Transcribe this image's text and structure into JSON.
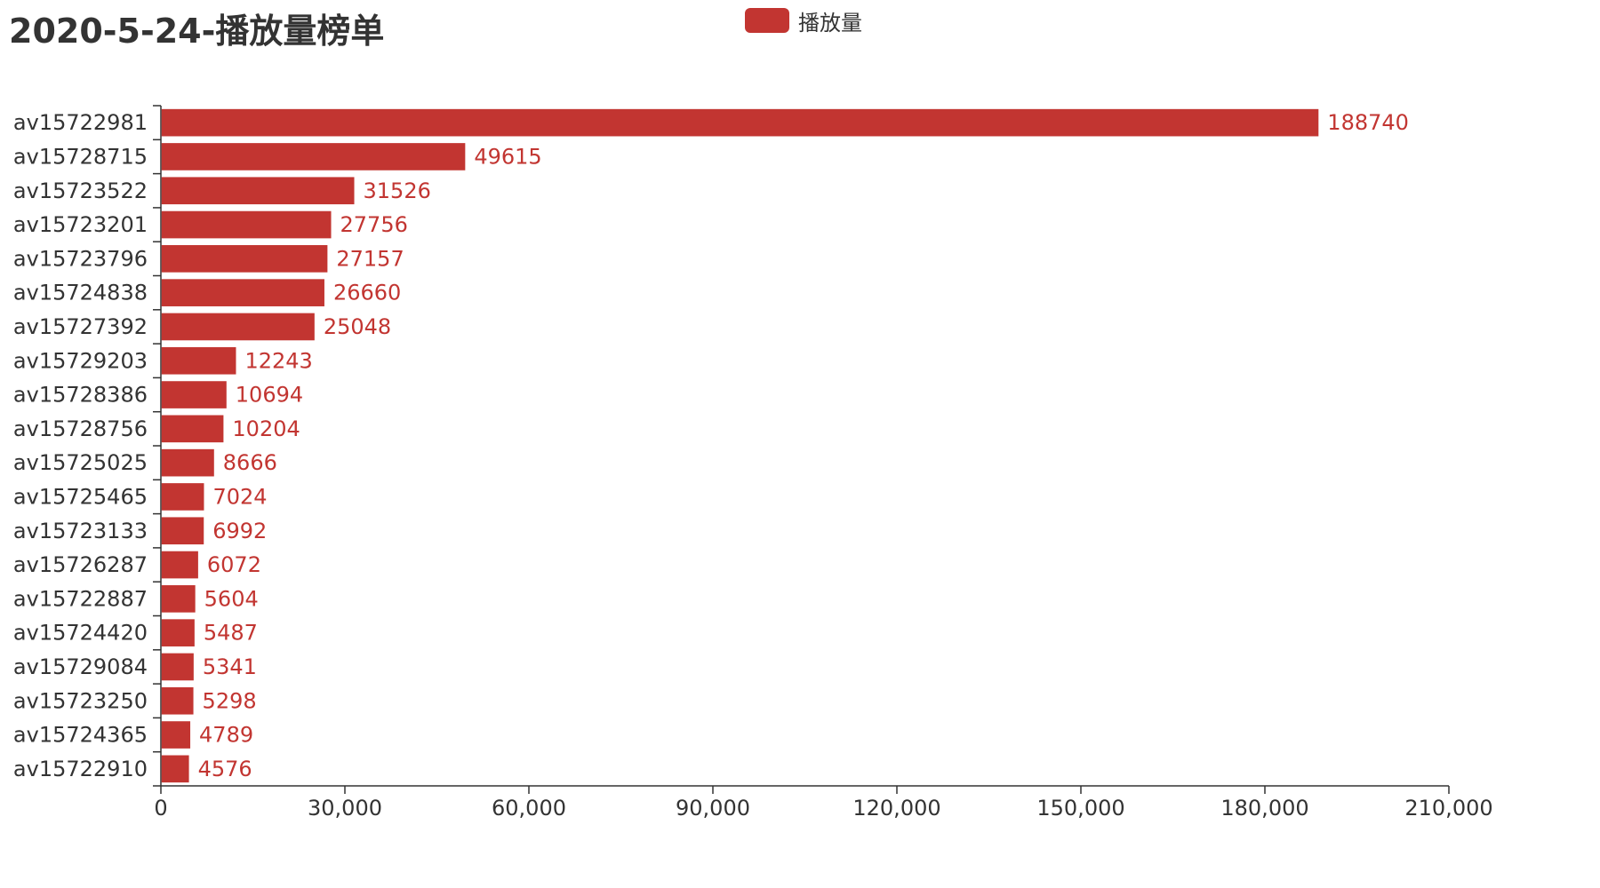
{
  "chart_data": {
    "type": "bar",
    "orientation": "horizontal",
    "title": "2020-5-24-播放量榜单",
    "legend": {
      "position": "top-center",
      "entries": [
        "播放量"
      ]
    },
    "color": "#c23531",
    "categories": [
      "av15722981",
      "av15728715",
      "av15723522",
      "av15723201",
      "av15723796",
      "av15724838",
      "av15727392",
      "av15729203",
      "av15728386",
      "av15728756",
      "av15725025",
      "av15725465",
      "av15723133",
      "av15726287",
      "av15722887",
      "av15724420",
      "av15729084",
      "av15723250",
      "av15724365",
      "av15722910"
    ],
    "series": [
      {
        "name": "播放量",
        "values": [
          188740,
          49615,
          31526,
          27756,
          27157,
          26660,
          25048,
          12243,
          10694,
          10204,
          8666,
          7024,
          6992,
          6072,
          5604,
          5487,
          5341,
          5298,
          4789,
          4576
        ]
      }
    ],
    "xlim": [
      0,
      210000
    ],
    "xticks": [
      0,
      30000,
      60000,
      90000,
      120000,
      150000,
      180000,
      210000
    ],
    "xtick_labels": [
      "0",
      "30,000",
      "60,000",
      "90,000",
      "120,000",
      "150,000",
      "180,000",
      "210,000"
    ],
    "grid": false,
    "data_labels": "right"
  }
}
